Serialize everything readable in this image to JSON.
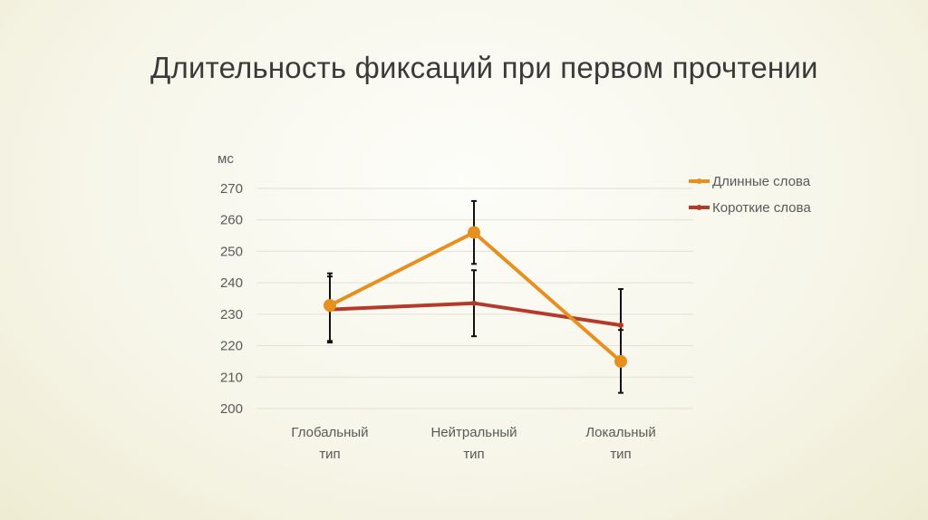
{
  "slide": {
    "title": "Длительность фиксаций при первом прочтении"
  },
  "chart_data": {
    "type": "line",
    "title": "Длительность фиксаций при первом прочтении",
    "xlabel": "",
    "ylabel": "мс",
    "ylim": [
      200,
      270
    ],
    "yticks": [
      200,
      210,
      220,
      230,
      240,
      250,
      260,
      270
    ],
    "grid": true,
    "legend_position": "right",
    "categories": [
      [
        "Глобальный",
        "тип"
      ],
      [
        "Нейтральный",
        "тип"
      ],
      [
        "Локальный",
        "тип"
      ]
    ],
    "series": [
      {
        "name": "Длинные слова",
        "color": "#e8901f",
        "values": [
          232.8,
          256,
          215
        ],
        "error_low": [
          221,
          246,
          205
        ],
        "error_high": [
          243,
          266,
          225
        ],
        "marker": "circle-large"
      },
      {
        "name": "Короткие слова",
        "color": "#b63a2a",
        "values": [
          231.5,
          233.5,
          226.5
        ],
        "error_low": [
          221.5,
          223,
          215
        ],
        "error_high": [
          242,
          244,
          238
        ],
        "marker": "circle-small"
      }
    ]
  }
}
